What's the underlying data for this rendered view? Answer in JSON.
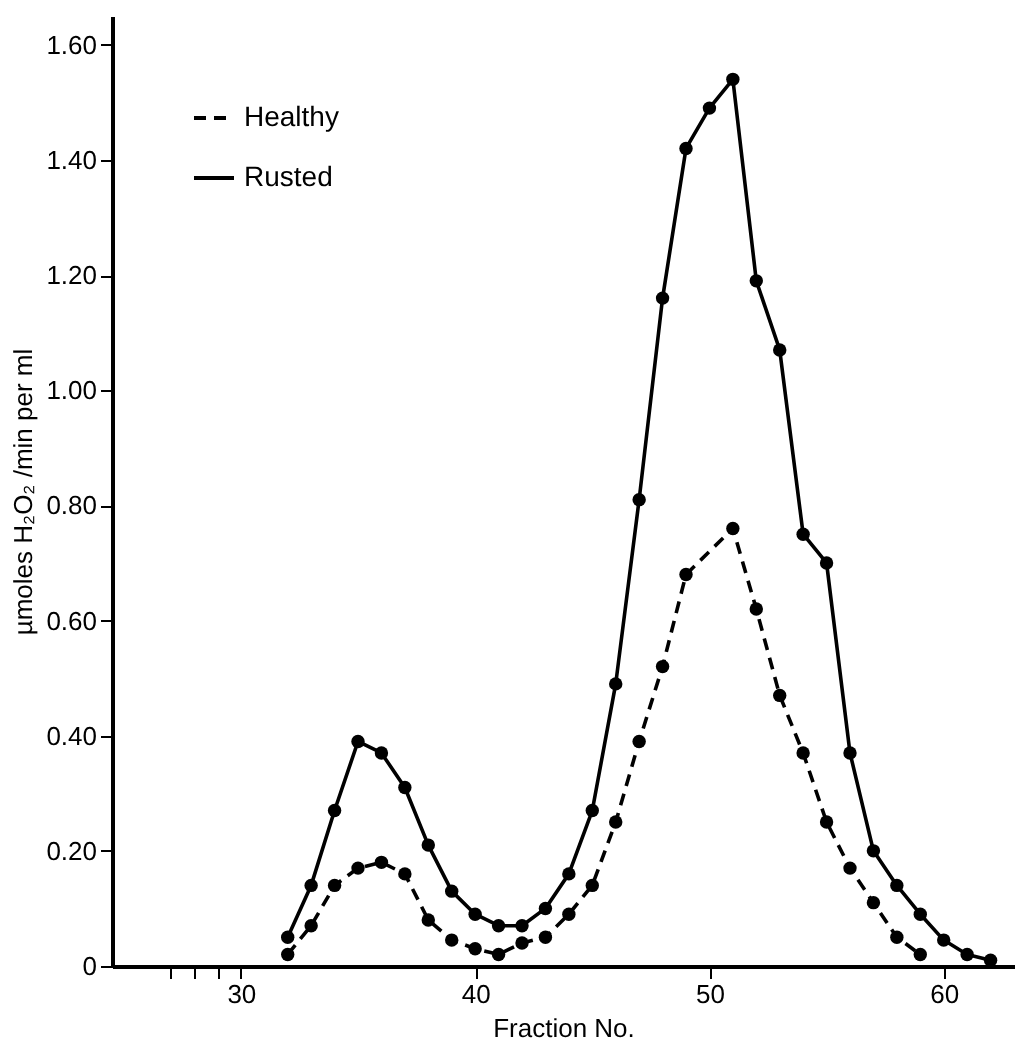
{
  "chart_data": {
    "type": "line",
    "xlabel": "Fraction No.",
    "ylabel": "µmoles H₂O₂ /min per ml",
    "xlim": [
      24.5,
      63
    ],
    "xticks": [
      {
        "value": 27,
        "label": null
      },
      {
        "value": 28,
        "label": null
      },
      {
        "value": 29,
        "label": null
      },
      30,
      40,
      50,
      60
    ],
    "ylim": [
      0,
      1.65
    ],
    "yticks": [
      0,
      {
        "value": 0.2,
        "label": "0.20"
      },
      {
        "value": 0.4,
        "label": "0.40"
      },
      {
        "value": 0.6,
        "label": "0.60"
      },
      {
        "value": 0.8,
        "label": "0.80"
      },
      {
        "value": 1.0,
        "label": "1.00"
      },
      {
        "value": 1.2,
        "label": "1.20"
      },
      {
        "value": 1.4,
        "label": "1.40"
      },
      {
        "value": 1.6,
        "label": "1.60"
      }
    ],
    "marker": "circle",
    "legend": "top left",
    "grid": false,
    "series": [
      {
        "name": "Healthy",
        "color": "#000000",
        "line_style": "dashed",
        "x": [
          32,
          33,
          34,
          35,
          36,
          37,
          38,
          39,
          40,
          41,
          42,
          43,
          44,
          45,
          46,
          47,
          48,
          49,
          51,
          52,
          53,
          54,
          55,
          56,
          57,
          58,
          59
        ],
        "values": [
          0.02,
          0.07,
          0.14,
          0.17,
          0.18,
          0.16,
          0.08,
          0.045,
          0.03,
          0.02,
          0.04,
          0.05,
          0.09,
          0.14,
          0.25,
          0.39,
          0.52,
          0.68,
          0.76,
          0.62,
          0.47,
          0.37,
          0.25,
          0.17,
          0.11,
          0.05,
          0.02
        ]
      },
      {
        "name": "Rusted",
        "color": "#000000",
        "line_style": "solid",
        "x": [
          32,
          33,
          34,
          35,
          36,
          37,
          38,
          39,
          40,
          41,
          42,
          43,
          44,
          45,
          46,
          47,
          48,
          49,
          50,
          51,
          52,
          53,
          54,
          55,
          56,
          57,
          58,
          59,
          60,
          61,
          62
        ],
        "values": [
          0.05,
          0.14,
          0.27,
          0.39,
          0.37,
          0.31,
          0.21,
          0.13,
          0.09,
          0.07,
          0.07,
          0.1,
          0.16,
          0.27,
          0.49,
          0.81,
          1.16,
          1.42,
          1.49,
          1.54,
          1.19,
          1.07,
          0.75,
          0.7,
          0.37,
          0.2,
          0.14,
          0.09,
          0.045,
          0.02,
          0.01
        ]
      }
    ]
  }
}
